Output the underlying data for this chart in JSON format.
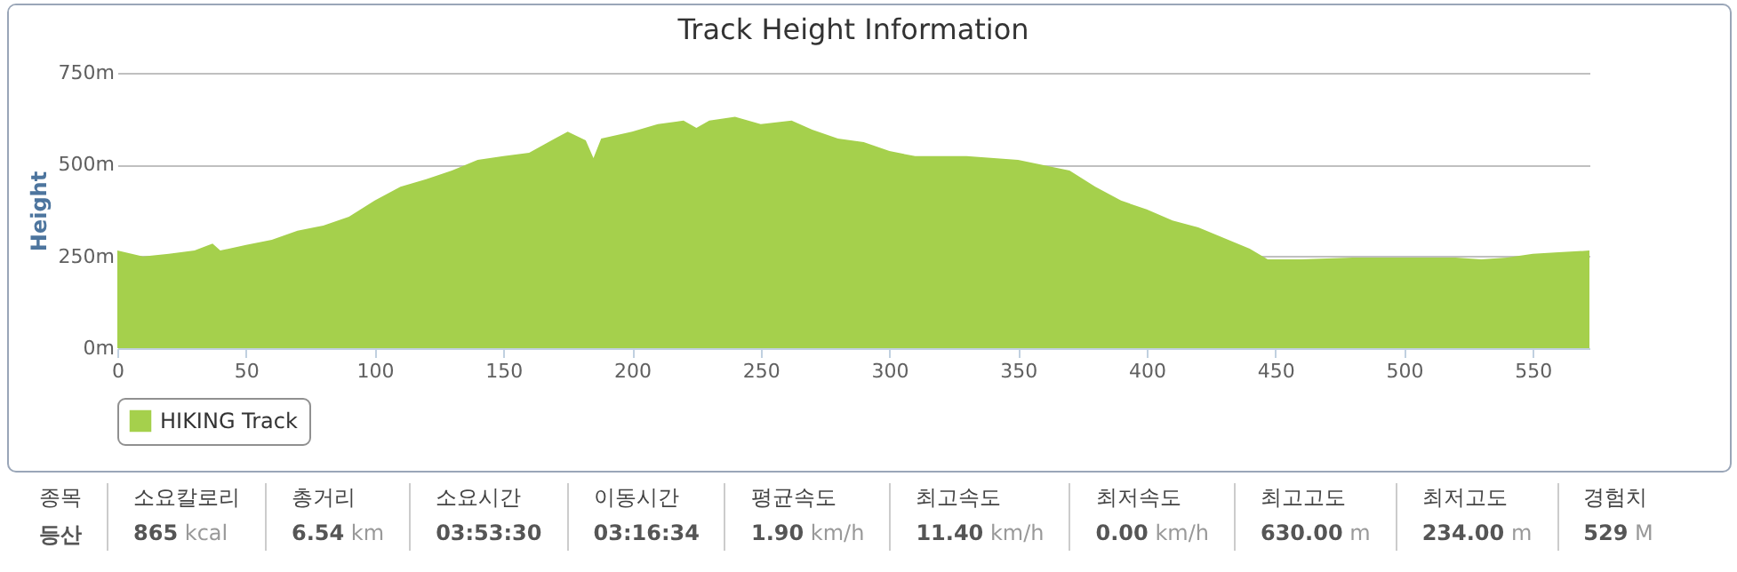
{
  "chart_data": {
    "type": "area",
    "title": "Track Height Information",
    "ylabel": "Height",
    "x": [
      0,
      10,
      20,
      30,
      37,
      40,
      50,
      60,
      70,
      80,
      90,
      100,
      110,
      120,
      130,
      140,
      150,
      160,
      170,
      175,
      182,
      185,
      188,
      200,
      210,
      220,
      225,
      230,
      240,
      250,
      262,
      270,
      280,
      290,
      300,
      310,
      330,
      350,
      370,
      380,
      390,
      400,
      410,
      420,
      430,
      440,
      447,
      460,
      480,
      500,
      520,
      530,
      540,
      550,
      560,
      572
    ],
    "series": [
      {
        "name": "HIKING Track",
        "color": "#a5d04c",
        "values": [
          266,
          250,
          257,
          266,
          285,
          266,
          281,
          295,
          320,
          334,
          358,
          402,
          440,
          460,
          484,
          513,
          523,
          532,
          571,
          590,
          566,
          518,
          571,
          590,
          610,
          620,
          600,
          620,
          630,
          610,
          620,
          595,
          571,
          561,
          537,
          523,
          523,
          513,
          484,
          440,
          402,
          378,
          348,
          329,
          300,
          271,
          242,
          242,
          247,
          247,
          247,
          242,
          247,
          257,
          261,
          266
        ]
      }
    ],
    "xlim": [
      0,
      572
    ],
    "xticks": [
      0,
      50,
      100,
      150,
      200,
      250,
      300,
      350,
      400,
      450,
      500,
      550
    ],
    "ylim": [
      0,
      750
    ],
    "yticks": [
      {
        "value": 0,
        "label": "0m"
      },
      {
        "value": 250,
        "label": "250m"
      },
      {
        "value": 500,
        "label": "500m"
      },
      {
        "value": 750,
        "label": "750m"
      }
    ],
    "grid": "y",
    "legend": "bottom",
    "annotations": [
      "종목 등산",
      "소요칼로리 865 kcal",
      "총거리 6.54 km",
      "소요시간 03:53:30",
      "이동시간 03:16:34",
      "평균속도 1.90 km/h",
      "최고속도 11.40 km/h",
      "최저속도 0.00 km/h",
      "최고고도 630.00 m",
      "최저고도 234.00 m",
      "경험치 529 M"
    ]
  }
}
